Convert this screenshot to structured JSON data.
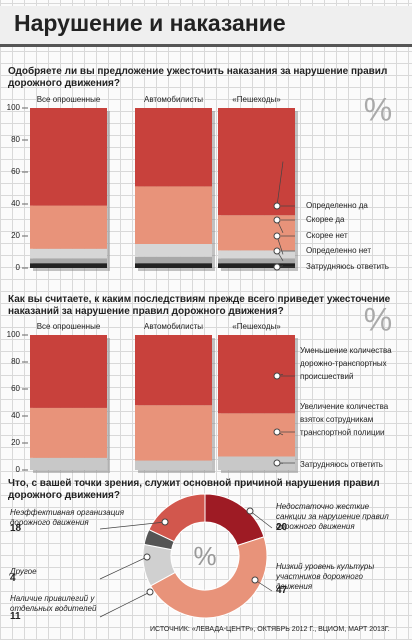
{
  "header": {
    "title": "Нарушение и наказание"
  },
  "chart_data": [
    {
      "type": "bar",
      "stacked": true,
      "title": "Одобряете ли вы предложение ужесточить наказания за нарушение правил дорожного движения?",
      "unit_symbol": "%",
      "categories": [
        "Все опрошенные",
        "Автомобилисты",
        "«Пешеходы»"
      ],
      "series": [
        {
          "name": "Определенно да",
          "color": "#c8413c",
          "values": [
            61,
            49,
            67
          ]
        },
        {
          "name": "Скорее да",
          "color": "#e8937a",
          "values": [
            27,
            36,
            22
          ]
        },
        {
          "name": "Скорее нет",
          "color": "#d6d6d6",
          "values": [
            6,
            8,
            5
          ]
        },
        {
          "name": "Определенно нет",
          "color": "#a8a8a8",
          "values": [
            3,
            4,
            3
          ]
        },
        {
          "name": "Затрудняюсь ответить",
          "color": "#222222",
          "values": [
            3,
            3,
            3
          ]
        }
      ],
      "ylim": [
        0,
        100
      ],
      "yticks": [
        0,
        20,
        40,
        60,
        80,
        100
      ]
    },
    {
      "type": "bar",
      "stacked": true,
      "title": "Как вы считаете, к каким последствиям прежде всего приведет ужесточение наказаний за нарушение правил дорожного движения?",
      "unit_symbol": "%",
      "categories": [
        "Все опрошенные",
        "Автомобилисты",
        "«Пешеходы»"
      ],
      "series": [
        {
          "name": "Уменьшение количества дорожно-транспортных происшествий",
          "color": "#c8413c",
          "values": [
            54,
            52,
            58
          ]
        },
        {
          "name": "Увеличение количества взяток сотрудникам транспортной полиции",
          "color": "#e8937a",
          "values": [
            37,
            41,
            32
          ]
        },
        {
          "name": "Затрудняюсь ответить",
          "color": "#c8c8c8",
          "values": [
            9,
            7,
            10
          ]
        }
      ],
      "ylim": [
        0,
        100
      ],
      "yticks": [
        0,
        20,
        40,
        60,
        80,
        100
      ]
    },
    {
      "type": "pie",
      "donut": true,
      "title": "Что, с вашей точки зрения, служит основной причиной нарушения правил дорожного движения?",
      "center_label": "%",
      "categories": [
        "Недостаточно жесткие санкции за нарушение правил дорожного движения",
        "Низкий уровень культуры участников дорожного движения",
        "Наличие привилегий у отдельных водителей",
        "Другое",
        "Неэффективная организация дорожного движения"
      ],
      "values": [
        20,
        47,
        11,
        4,
        18
      ],
      "colors": [
        "#9e1b24",
        "#e8937a",
        "#d0d0d0",
        "#555555",
        "#d2574d"
      ]
    }
  ],
  "source": "ИСТОЧНИК: «ЛЕВАДА-ЦЕНТР», ОКТЯБРЬ 2012 Г., ВЦИОМ, МАРТ 2013Г."
}
